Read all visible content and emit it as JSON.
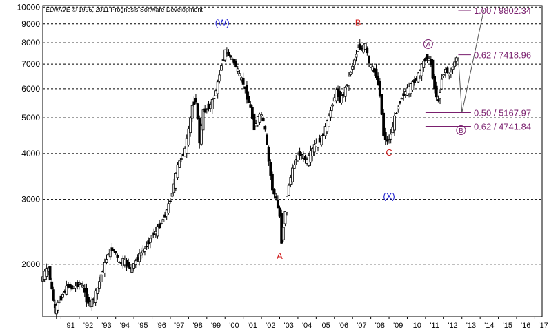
{
  "copyright": "ELWAVE © 1996, 2011 Prognosis Software Development",
  "colors": {
    "candle": "#000000",
    "grid": "#000000",
    "projection": "#7a1f6e",
    "label_blue": "#1b1bd1",
    "label_red": "#d11b1b",
    "circle_label": "#7a1f6e"
  },
  "chart_data": {
    "type": "candlestick",
    "title": "",
    "xlabel": "",
    "ylabel": "",
    "y_scale": "log",
    "ylim": [
      1440,
      10100
    ],
    "xlim": [
      1990.0,
      2017.4
    ],
    "y_ticks": [
      2000,
      3000,
      4000,
      5000,
      6000,
      7000,
      8000,
      9000,
      10000
    ],
    "y_tick_labels": [
      "2000",
      "3000",
      "4000",
      "5000",
      "6000",
      "7000",
      "8000",
      "9000",
      "10000"
    ],
    "x_ticks": [
      1991,
      1992,
      1993,
      1994,
      1995,
      1996,
      1997,
      1998,
      1999,
      2000,
      2001,
      2002,
      2003,
      2004,
      2005,
      2006,
      2007,
      2008,
      2009,
      2010,
      2011,
      2012,
      2013,
      2014,
      2015,
      2016,
      2017
    ],
    "x_tick_labels": [
      "'91",
      "'92",
      "'93",
      "'94",
      "'95",
      "'96",
      "'97",
      "'98",
      "'99",
      "'00",
      "'01",
      "'02",
      "'03",
      "'04",
      "'05",
      "'06",
      "'07",
      "'08",
      "'09",
      "'10",
      "'11",
      "'12",
      "'13",
      "'14",
      "'15",
      "'16",
      "'17"
    ],
    "grid": "horizontal dashed",
    "series": [
      {
        "type": "ohlc-monthly",
        "points": [
          [
            1990.0,
            1800
          ],
          [
            1990.2,
            1900
          ],
          [
            1990.4,
            1950
          ],
          [
            1990.6,
            1700
          ],
          [
            1990.75,
            1500
          ],
          [
            1990.9,
            1560
          ],
          [
            1991.1,
            1620
          ],
          [
            1991.3,
            1700
          ],
          [
            1991.5,
            1750
          ],
          [
            1991.7,
            1720
          ],
          [
            1991.9,
            1740
          ],
          [
            1992.1,
            1780
          ],
          [
            1992.3,
            1740
          ],
          [
            1992.5,
            1600
          ],
          [
            1992.7,
            1560
          ],
          [
            1992.9,
            1620
          ],
          [
            1993.1,
            1720
          ],
          [
            1993.3,
            1870
          ],
          [
            1993.5,
            2000
          ],
          [
            1993.7,
            2150
          ],
          [
            1993.9,
            2200
          ],
          [
            1994.1,
            2150
          ],
          [
            1994.3,
            2000
          ],
          [
            1994.5,
            2050
          ],
          [
            1994.7,
            2000
          ],
          [
            1994.9,
            1950
          ],
          [
            1995.1,
            2000
          ],
          [
            1995.3,
            2080
          ],
          [
            1995.5,
            2150
          ],
          [
            1995.7,
            2200
          ],
          [
            1995.9,
            2300
          ],
          [
            1996.1,
            2400
          ],
          [
            1996.3,
            2450
          ],
          [
            1996.5,
            2550
          ],
          [
            1996.7,
            2650
          ],
          [
            1996.9,
            2800
          ],
          [
            1997.1,
            3000
          ],
          [
            1997.3,
            3300
          ],
          [
            1997.5,
            3700
          ],
          [
            1997.7,
            3900
          ],
          [
            1997.9,
            4100
          ],
          [
            1998.1,
            4600
          ],
          [
            1998.3,
            5400
          ],
          [
            1998.5,
            5600
          ],
          [
            1998.7,
            4300
          ],
          [
            1998.9,
            5200
          ],
          [
            1999.1,
            5300
          ],
          [
            1999.3,
            5400
          ],
          [
            1999.5,
            5700
          ],
          [
            1999.7,
            6200
          ],
          [
            1999.9,
            7000
          ],
          [
            2000.1,
            7600
          ],
          [
            2000.3,
            7400
          ],
          [
            2000.5,
            7200
          ],
          [
            2000.7,
            6900
          ],
          [
            2000.9,
            6500
          ],
          [
            2001.1,
            6200
          ],
          [
            2001.3,
            5700
          ],
          [
            2001.5,
            5300
          ],
          [
            2001.7,
            4700
          ],
          [
            2001.9,
            5000
          ],
          [
            2002.1,
            5100
          ],
          [
            2002.3,
            4600
          ],
          [
            2002.5,
            3800
          ],
          [
            2002.7,
            3200
          ],
          [
            2002.9,
            3000
          ],
          [
            2003.1,
            2700
          ],
          [
            2003.2,
            2300
          ],
          [
            2003.4,
            2800
          ],
          [
            2003.6,
            3300
          ],
          [
            2003.8,
            3600
          ],
          [
            2004.0,
            3900
          ],
          [
            2004.2,
            4000
          ],
          [
            2004.4,
            3900
          ],
          [
            2004.6,
            3800
          ],
          [
            2004.8,
            4000
          ],
          [
            2005.0,
            4200
          ],
          [
            2005.2,
            4300
          ],
          [
            2005.4,
            4400
          ],
          [
            2005.6,
            4700
          ],
          [
            2005.8,
            5000
          ],
          [
            2006.0,
            5500
          ],
          [
            2006.2,
            5900
          ],
          [
            2006.4,
            5600
          ],
          [
            2006.6,
            5800
          ],
          [
            2006.8,
            6200
          ],
          [
            2007.0,
            6700
          ],
          [
            2007.2,
            7200
          ],
          [
            2007.4,
            7800
          ],
          [
            2007.6,
            7700
          ],
          [
            2007.8,
            7900
          ],
          [
            2008.0,
            7000
          ],
          [
            2008.2,
            6800
          ],
          [
            2008.4,
            6500
          ],
          [
            2008.6,
            5800
          ],
          [
            2008.8,
            4500
          ],
          [
            2009.0,
            4300
          ],
          [
            2009.2,
            4500
          ],
          [
            2009.4,
            5000
          ],
          [
            2009.6,
            5400
          ],
          [
            2009.8,
            5700
          ],
          [
            2010.0,
            5900
          ],
          [
            2010.2,
            6000
          ],
          [
            2010.4,
            6200
          ],
          [
            2010.6,
            6400
          ],
          [
            2010.8,
            6700
          ],
          [
            2011.0,
            7100
          ],
          [
            2011.2,
            7350
          ],
          [
            2011.4,
            7000
          ],
          [
            2011.6,
            6000
          ],
          [
            2011.8,
            5500
          ],
          [
            2012.0,
            6400
          ],
          [
            2012.2,
            6800
          ],
          [
            2012.4,
            6500
          ],
          [
            2012.6,
            6900
          ],
          [
            2012.8,
            7300
          ]
        ]
      },
      {
        "type": "projection",
        "points": [
          [
            2012.8,
            7300
          ],
          [
            2013.0,
            5167.97
          ],
          [
            2014.2,
            9802.34
          ]
        ]
      }
    ],
    "wave_labels": [
      {
        "text": "(W)",
        "x": 1999.85,
        "y": 8900,
        "color": "blue"
      },
      {
        "text": "B",
        "x": 2007.3,
        "y": 8900,
        "color": "red"
      },
      {
        "text": "A",
        "x": 2003.0,
        "y": 2070,
        "color": "red"
      },
      {
        "text": "C",
        "x": 2009.0,
        "y": 3950,
        "color": "red"
      },
      {
        "text": "(X)",
        "x": 2009.0,
        "y": 3000,
        "color": "blue"
      },
      {
        "text": "A",
        "x": 2011.15,
        "y": 7800,
        "color": "circle"
      },
      {
        "text": "B",
        "x": 2012.95,
        "y": 4550,
        "color": "circle"
      }
    ],
    "targets": [
      {
        "label": "1.00 / 9802.34",
        "value": 9802.34,
        "x_start": 2012.8,
        "x_end": 2013.5
      },
      {
        "label": "0.62 / 7418.96",
        "value": 7418.96,
        "x_start": 2012.8,
        "x_end": 2013.5
      },
      {
        "label": "0.50 / 5167.97",
        "value": 5167.97,
        "x_start": 2011.0,
        "x_end": 2013.5
      },
      {
        "label": "0.62 / 4741.84",
        "value": 4741.84,
        "x_start": 2011.0,
        "x_end": 2013.5
      }
    ]
  }
}
